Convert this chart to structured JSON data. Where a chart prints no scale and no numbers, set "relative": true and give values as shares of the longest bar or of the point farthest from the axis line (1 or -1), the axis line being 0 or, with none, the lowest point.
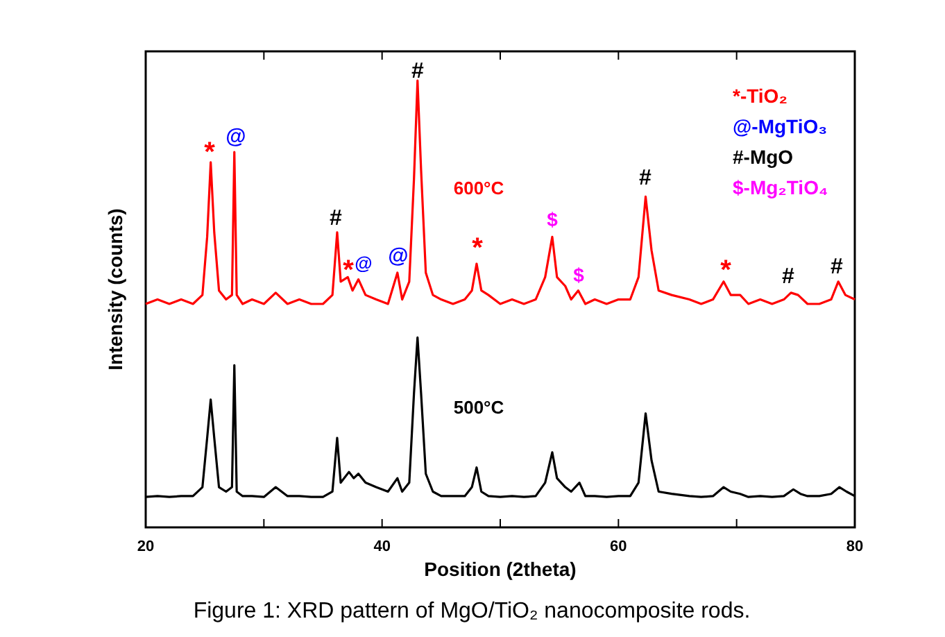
{
  "chart_data": {
    "type": "line",
    "relative": true,
    "title": "Figure 1: XRD pattern of MgO/TiO₂ nanocomposite rods.",
    "xlabel": "Position (2theta)",
    "ylabel": "Intensity (counts)",
    "xlim": [
      20,
      80
    ],
    "xticks": [
      20,
      {
        "value": 30,
        "label": null
      },
      40,
      {
        "value": 50,
        "label": null
      },
      60,
      {
        "value": 70,
        "label": null
      },
      80
    ],
    "grid": false,
    "marker": "none",
    "line_style": "solid",
    "series": [
      {
        "color": "#ff0000",
        "x": [
          20,
          21,
          22,
          23,
          24,
          24.8,
          25.2,
          25.5,
          25.8,
          26.2,
          26.8,
          27.3,
          27.5,
          27.7,
          28.2,
          29,
          30,
          31,
          32,
          33,
          34,
          35,
          35.8,
          36.2,
          36.5,
          37.1,
          37.5,
          38,
          38.6,
          39.5,
          40.5,
          41.3,
          41.7,
          42.3,
          42.7,
          43,
          43.3,
          43.7,
          44.3,
          45,
          46,
          47,
          47.6,
          48,
          48.4,
          49,
          50,
          51,
          52,
          53,
          53.8,
          54.4,
          54.8,
          55.5,
          56,
          56.6,
          57.2,
          58,
          59,
          60,
          61,
          61.7,
          62.3,
          62.8,
          63.4,
          64.5,
          66,
          67,
          68,
          68.9,
          69.5,
          70.3,
          71,
          72,
          73,
          74,
          74.6,
          75.2,
          76,
          77,
          78,
          78.6,
          79.2,
          80
        ],
        "values": [
          0.5,
          0.51,
          0.5,
          0.51,
          0.5,
          0.52,
          0.65,
          0.817,
          0.66,
          0.53,
          0.51,
          0.52,
          0.84,
          0.52,
          0.5,
          0.51,
          0.5,
          0.525,
          0.5,
          0.51,
          0.5,
          0.5,
          0.52,
          0.66,
          0.55,
          0.56,
          0.53,
          0.555,
          0.52,
          0.51,
          0.5,
          0.57,
          0.51,
          0.55,
          0.78,
          1,
          0.8,
          0.57,
          0.52,
          0.51,
          0.5,
          0.51,
          0.53,
          0.59,
          0.53,
          0.52,
          0.5,
          0.51,
          0.5,
          0.51,
          0.56,
          0.65,
          0.56,
          0.54,
          0.51,
          0.53,
          0.5,
          0.51,
          0.5,
          0.51,
          0.51,
          0.56,
          0.74,
          0.62,
          0.53,
          0.52,
          0.51,
          0.5,
          0.51,
          0.55,
          0.52,
          0.52,
          0.5,
          0.51,
          0.5,
          0.51,
          0.525,
          0.52,
          0.5,
          0.5,
          0.51,
          0.55,
          0.52,
          0.51
        ]
      },
      {
        "color": "#000000",
        "x": [
          20,
          21,
          22,
          23,
          24,
          24.8,
          25.2,
          25.5,
          25.8,
          26.2,
          26.8,
          27.3,
          27.5,
          27.7,
          28.2,
          29,
          30,
          31,
          32,
          33,
          34,
          35,
          35.8,
          36.2,
          36.5,
          37.2,
          37.6,
          38,
          38.6,
          39.5,
          40.5,
          41.3,
          41.7,
          42.3,
          42.7,
          43,
          43.3,
          43.7,
          44.3,
          45,
          46,
          47,
          47.6,
          48,
          48.4,
          49,
          50,
          51,
          52,
          53,
          53.8,
          54.4,
          54.8,
          55.5,
          56,
          56.7,
          57.2,
          58,
          59,
          60,
          61,
          61.7,
          62.3,
          62.8,
          63.4,
          64.5,
          66,
          67,
          68,
          68.9,
          69.5,
          70.3,
          71,
          72,
          73,
          74,
          74.8,
          75.4,
          76,
          77,
          78,
          78.7,
          79.3,
          80
        ],
        "values": [
          0.068,
          0.07,
          0.068,
          0.07,
          0.07,
          0.09,
          0.2,
          0.286,
          0.2,
          0.09,
          0.08,
          0.09,
          0.363,
          0.08,
          0.07,
          0.07,
          0.068,
          0.09,
          0.07,
          0.07,
          0.068,
          0.068,
          0.08,
          0.2,
          0.1,
          0.124,
          0.11,
          0.12,
          0.1,
          0.09,
          0.08,
          0.11,
          0.08,
          0.1,
          0.3,
          0.425,
          0.3,
          0.12,
          0.08,
          0.07,
          0.07,
          0.07,
          0.09,
          0.134,
          0.08,
          0.07,
          0.068,
          0.07,
          0.068,
          0.07,
          0.1,
          0.168,
          0.11,
          0.09,
          0.08,
          0.1,
          0.07,
          0.07,
          0.068,
          0.07,
          0.07,
          0.1,
          0.255,
          0.15,
          0.08,
          0.075,
          0.07,
          0.068,
          0.07,
          0.09,
          0.08,
          0.075,
          0.068,
          0.07,
          0.068,
          0.07,
          0.085,
          0.075,
          0.07,
          0.07,
          0.075,
          0.09,
          0.08,
          0.07
        ]
      }
    ],
    "annotations": [
      "*-TiO₂",
      "@-MgTiO₃",
      "#-MgO",
      "$-Mg₂TiO₄",
      "600°C",
      "500°C",
      "*",
      "@",
      "#",
      "*",
      "@",
      "@",
      "#",
      "*",
      "$",
      "$",
      "#",
      "*",
      "#",
      "#"
    ]
  }
}
